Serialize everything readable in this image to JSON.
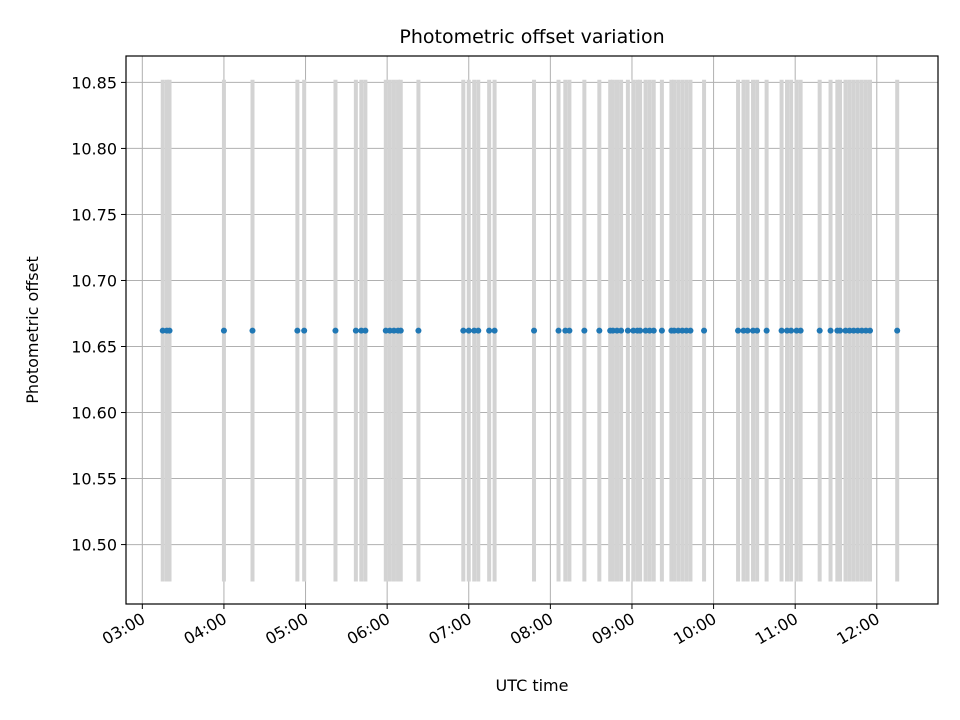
{
  "chart_data": {
    "type": "scatter",
    "title": "Photometric offset variation",
    "xlabel": "UTC time",
    "ylabel": "Photometric offset",
    "grid": true,
    "xlim_hours": [
      2.8,
      12.75
    ],
    "ylim": [
      10.455,
      10.87
    ],
    "x_ticks": [
      {
        "h": 3,
        "label": "03:00"
      },
      {
        "h": 4,
        "label": "04:00"
      },
      {
        "h": 5,
        "label": "05:00"
      },
      {
        "h": 6,
        "label": "06:00"
      },
      {
        "h": 7,
        "label": "07:00"
      },
      {
        "h": 8,
        "label": "08:00"
      },
      {
        "h": 9,
        "label": "09:00"
      },
      {
        "h": 10,
        "label": "10:00"
      },
      {
        "h": 11,
        "label": "11:00"
      },
      {
        "h": 12,
        "label": "12:00"
      }
    ],
    "y_ticks": [
      {
        "v": 10.5,
        "label": "10.50"
      },
      {
        "v": 10.55,
        "label": "10.55"
      },
      {
        "v": 10.6,
        "label": "10.60"
      },
      {
        "v": 10.65,
        "label": "10.65"
      },
      {
        "v": 10.7,
        "label": "10.70"
      },
      {
        "v": 10.75,
        "label": "10.75"
      },
      {
        "v": 10.8,
        "label": "10.80"
      },
      {
        "v": 10.85,
        "label": "10.85"
      }
    ],
    "point_value": 10.662,
    "error_low": 10.472,
    "error_high": 10.852,
    "marker_color": "#1f77b4",
    "errorbar_color": "#d3d3d3",
    "times": [
      "03:15",
      "03:18",
      "03:20",
      "04:00",
      "04:21",
      "04:54",
      "04:59",
      "05:22",
      "05:37",
      "05:41",
      "05:44",
      "05:59",
      "06:02",
      "06:05",
      "06:08",
      "06:10",
      "06:23",
      "06:56",
      "07:00",
      "07:04",
      "07:07",
      "07:15",
      "07:19",
      "07:48",
      "08:06",
      "08:11",
      "08:14",
      "08:25",
      "08:36",
      "08:44",
      "08:46",
      "08:49",
      "08:52",
      "08:57",
      "09:01",
      "09:04",
      "09:06",
      "09:10",
      "09:13",
      "09:16",
      "09:22",
      "09:29",
      "09:31",
      "09:34",
      "09:37",
      "09:40",
      "09:43",
      "09:53",
      "10:18",
      "10:22",
      "10:25",
      "10:29",
      "10:32",
      "10:39",
      "10:50",
      "10:54",
      "10:57",
      "11:01",
      "11:04",
      "11:18",
      "11:26",
      "11:31",
      "11:33",
      "11:37",
      "11:40",
      "11:43",
      "11:46",
      "11:49",
      "11:52",
      "11:55",
      "12:15"
    ]
  }
}
